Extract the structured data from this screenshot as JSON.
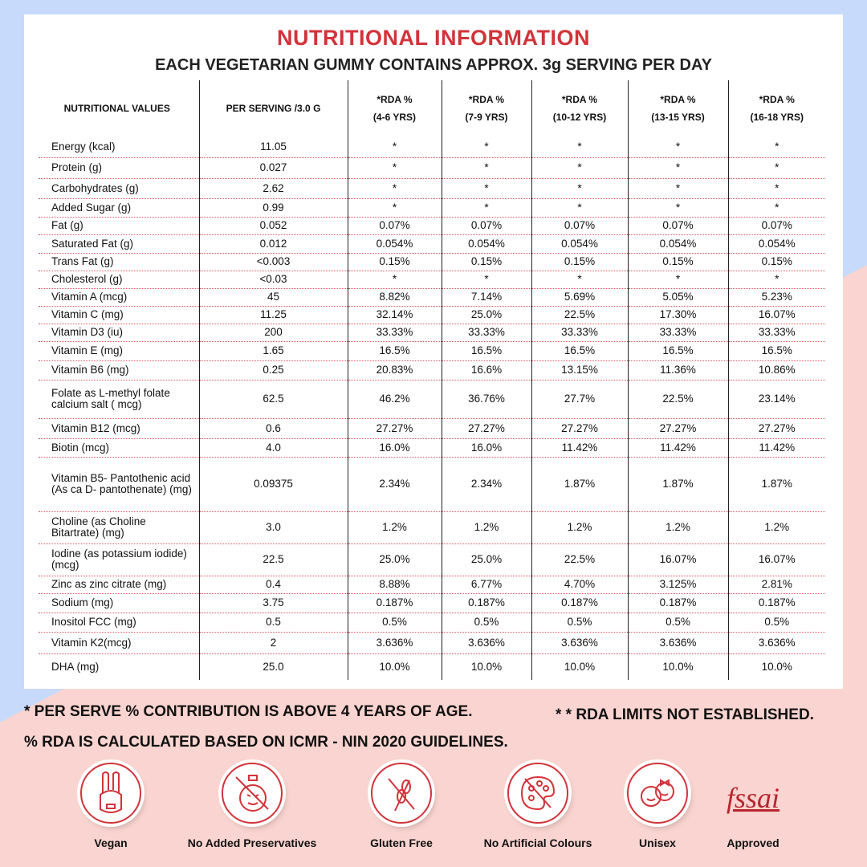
{
  "title": "NUTRITIONAL INFORMATION",
  "subtitle": "EACH VEGETARIAN GUMMY CONTAINS APPROX. 3g SERVING PER DAY",
  "colors": {
    "accent": "#d2333a",
    "background_blue": "#c8dafb",
    "background_pink": "#fad4d0"
  },
  "headers": [
    "NUTRITIONAL VALUES",
    "PER SERVING /3.0 G",
    [
      "*RDA %",
      "(4-6 YRS)"
    ],
    [
      "*RDA %",
      "(7-9 YRS)"
    ],
    [
      "*RDA %",
      "(10-12 YRS)"
    ],
    [
      "*RDA %",
      "(13-15 YRS)"
    ],
    [
      "*RDA %",
      "(16-18 YRS)"
    ]
  ],
  "rows": [
    [
      "Energy (kcal)",
      "11.05",
      "*",
      "*",
      "*",
      "*",
      "*"
    ],
    [
      "Protein (g)",
      "0.027",
      "*",
      "*",
      "*",
      "*",
      "*"
    ],
    [
      "Carbohydrates (g)",
      "2.62",
      "*",
      "*",
      "*",
      "*",
      "*"
    ],
    [
      "Added Sugar (g)",
      "0.99",
      "*",
      "*",
      "*",
      "*",
      "*"
    ],
    [
      "Fat (g)",
      "0.052",
      "0.07%",
      "0.07%",
      "0.07%",
      "0.07%",
      "0.07%"
    ],
    [
      "Saturated Fat (g)",
      "0.012",
      "0.054%",
      "0.054%",
      "0.054%",
      "0.054%",
      "0.054%"
    ],
    [
      "Trans Fat (g)",
      "<0.003",
      "0.15%",
      "0.15%",
      "0.15%",
      "0.15%",
      "0.15%"
    ],
    [
      "Cholesterol (g)",
      "<0.03",
      "*",
      "*",
      "*",
      "*",
      "*"
    ],
    [
      "Vitamin A (mcg)",
      "45",
      "8.82%",
      "7.14%",
      "5.69%",
      "5.05%",
      "5.23%"
    ],
    [
      "Vitamin C (mg)",
      "11.25",
      "32.14%",
      "25.0%",
      "22.5%",
      "17.30%",
      "16.07%"
    ],
    [
      "Vitamin D3 (iu)",
      "200",
      "33.33%",
      "33.33%",
      "33.33%",
      "33.33%",
      "33.33%"
    ],
    [
      "Vitamin E (mg)",
      "1.65",
      "16.5%",
      "16.5%",
      "16.5%",
      "16.5%",
      "16.5%"
    ],
    [
      "Vitamin B6 (mg)",
      "0.25",
      "20.83%",
      "16.6%",
      "13.15%",
      "11.36%",
      "10.86%"
    ],
    [
      "Folate as L-methyl folate calcium salt ( mcg)",
      "62.5",
      "46.2%",
      "36.76%",
      "27.7%",
      "22.5%",
      "23.14%"
    ],
    [
      "Vitamin B12 (mcg)",
      "0.6",
      "27.27%",
      "27.27%",
      "27.27%",
      "27.27%",
      "27.27%"
    ],
    [
      "Biotin (mcg)",
      "4.0",
      "16.0%",
      "16.0%",
      "11.42%",
      "11.42%",
      "11.42%"
    ],
    [
      "Vitamin B5- Pantothenic acid (As ca D- pantothenate) (mg)",
      "0.09375",
      "2.34%",
      "2.34%",
      "1.87%",
      "1.87%",
      "1.87%"
    ],
    [
      "Choline (as Choline Bitartrate) (mg)",
      "3.0",
      "1.2%",
      "1.2%",
      "1.2%",
      "1.2%",
      "1.2%"
    ],
    [
      "Iodine (as potassium iodide)(mcg)",
      "22.5",
      "25.0%",
      "25.0%",
      "22.5%",
      "16.07%",
      "16.07%"
    ],
    [
      "Zinc as zinc citrate (mg)",
      "0.4",
      "8.88%",
      "6.77%",
      "4.70%",
      "3.125%",
      "2.81%"
    ],
    [
      "Sodium (mg)",
      "3.75",
      "0.187%",
      "0.187%",
      "0.187%",
      "0.187%",
      "0.187%"
    ],
    [
      "Inositol FCC (mg)",
      "0.5",
      "0.5%",
      "0.5%",
      "0.5%",
      "0.5%",
      "0.5%"
    ],
    [
      "Vitamin K2(mcg)",
      "2",
      "3.636%",
      "3.636%",
      "3.636%",
      "3.636%",
      "3.636%"
    ],
    [
      "DHA (mg)",
      "25.0",
      "10.0%",
      "10.0%",
      "10.0%",
      "10.0%",
      "10.0%"
    ]
  ],
  "footnotes": {
    "per_serve": "* PER SERVE % CONTRIBUTION IS ABOVE 4 YEARS OF AGE.",
    "rda_limits": "* * RDA LIMITS NOT ESTABLISHED.",
    "icmr": "% RDA IS CALCULATED BASED ON ICMR - NIN 2020 GUIDELINES."
  },
  "badges": [
    {
      "icon": "rabbit-icon",
      "label": "Vegan"
    },
    {
      "icon": "no-preservatives-icon",
      "label": "No Added Preservatives"
    },
    {
      "icon": "no-wheat-icon",
      "label": "Gluten Free"
    },
    {
      "icon": "no-palette-icon",
      "label": "No Artificial Colours"
    },
    {
      "icon": "kids-faces-icon",
      "label": "Unisex"
    },
    {
      "icon": "fssai-logo",
      "logo_text": "fssai",
      "label": "Approved"
    }
  ]
}
